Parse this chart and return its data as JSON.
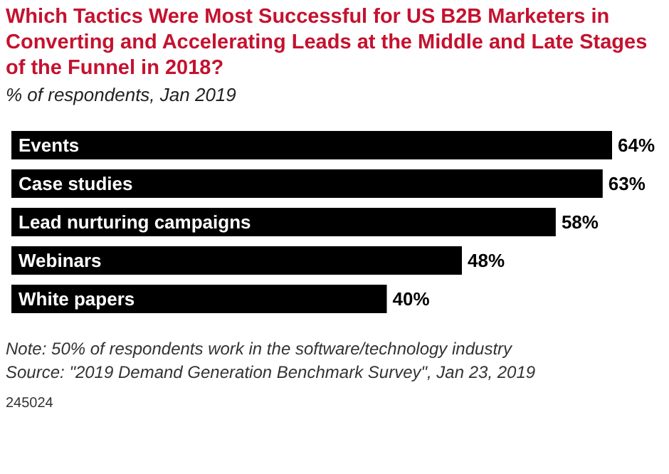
{
  "chart_data": {
    "type": "bar",
    "orientation": "horizontal",
    "title": "Which Tactics Were Most Successful for US B2B Marketers in Converting and Accelerating Leads at the Middle and Late Stages of the Funnel in 2018?",
    "subtitle": "% of respondents, Jan 2019",
    "categories": [
      "Events",
      "Case studies",
      "Lead nurturing campaigns",
      "Webinars",
      "White papers"
    ],
    "values": [
      64,
      63,
      58,
      48,
      40
    ],
    "value_labels": [
      "64%",
      "63%",
      "58%",
      "48%",
      "40%"
    ],
    "color": "#000000",
    "annotations": [
      "Note: 50% of respondents work in the software/technology industry",
      "Source: \"2019 Demand Generation Benchmark Survey\", Jan 23, 2019",
      "245024"
    ]
  }
}
